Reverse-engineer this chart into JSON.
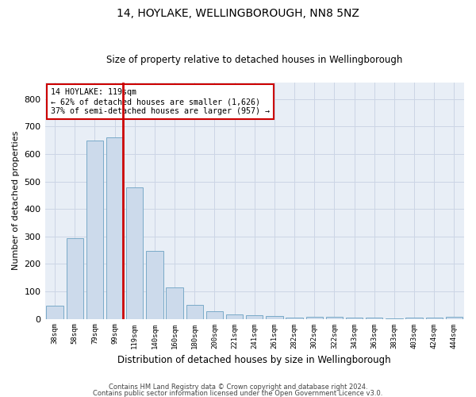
{
  "title1": "14, HOYLAKE, WELLINGBOROUGH, NN8 5NZ",
  "title2": "Size of property relative to detached houses in Wellingborough",
  "xlabel": "Distribution of detached houses by size in Wellingborough",
  "ylabel": "Number of detached properties",
  "categories": [
    "38sqm",
    "58sqm",
    "79sqm",
    "99sqm",
    "119sqm",
    "140sqm",
    "160sqm",
    "180sqm",
    "200sqm",
    "221sqm",
    "241sqm",
    "261sqm",
    "282sqm",
    "302sqm",
    "322sqm",
    "343sqm",
    "363sqm",
    "383sqm",
    "403sqm",
    "424sqm",
    "444sqm"
  ],
  "values": [
    48,
    293,
    648,
    660,
    478,
    248,
    115,
    52,
    27,
    15,
    13,
    10,
    5,
    8,
    8,
    5,
    5,
    3,
    4,
    4,
    8
  ],
  "bar_color": "#ccdaeb",
  "bar_edge_color": "#7aaac8",
  "highlight_line_color": "#cc0000",
  "annotation_text": "14 HOYLAKE: 119sqm\n← 62% of detached houses are smaller (1,626)\n37% of semi-detached houses are larger (957) →",
  "annotation_box_color": "#ffffff",
  "annotation_box_edge": "#cc0000",
  "ylim": [
    0,
    860
  ],
  "yticks": [
    0,
    100,
    200,
    300,
    400,
    500,
    600,
    700,
    800
  ],
  "grid_color": "#ccd5e5",
  "bg_color": "#e8eef6",
  "footer1": "Contains HM Land Registry data © Crown copyright and database right 2024.",
  "footer2": "Contains public sector information licensed under the Open Government Licence v3.0."
}
